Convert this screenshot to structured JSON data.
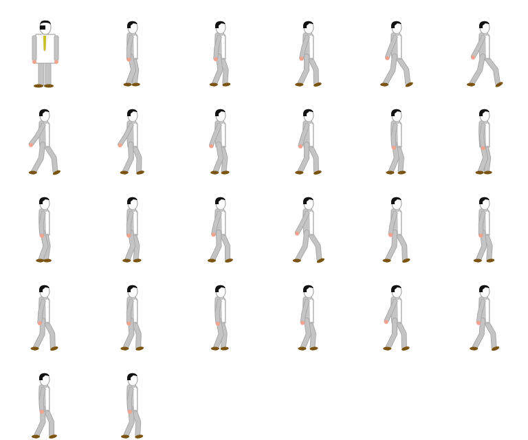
{
  "sprite_sheet": {
    "columns": 6,
    "frame_count": 26,
    "colors": {
      "background": "#ffffff",
      "suit": "#c4c4c4",
      "suit_light": "#ffffff",
      "outline": "#a8a8a8",
      "hair": "#111111",
      "skin": "#f2a38e",
      "shoe": "#7a5410",
      "tie": "#c8c020"
    },
    "frames": [
      {
        "view": "front"
      },
      {
        "view": "side",
        "stride": 0.1,
        "arm": 0.1
      },
      {
        "view": "side",
        "stride": 0.3,
        "arm": 0.2
      },
      {
        "view": "side",
        "stride": 0.55,
        "arm": 0.4
      },
      {
        "view": "side",
        "stride": 0.85,
        "arm": 0.6
      },
      {
        "view": "side",
        "stride": 1.0,
        "arm": 0.8
      },
      {
        "view": "side",
        "stride": 0.8,
        "arm": 1.0
      },
      {
        "view": "side",
        "stride": 0.45,
        "arm": 0.9
      },
      {
        "view": "side",
        "stride": 0.2,
        "arm": 0.6
      },
      {
        "view": "side",
        "stride": 0.55,
        "arm": 0.5
      },
      {
        "view": "side",
        "stride": 0.25,
        "arm": 0.0
      },
      {
        "view": "side",
        "stride": 0.1,
        "arm": -0.1
      },
      {
        "view": "side",
        "stride": 0.05,
        "arm": 0.0
      },
      {
        "view": "side",
        "stride": 0.2,
        "arm": 0.1
      },
      {
        "view": "side",
        "stride": 0.5,
        "arm": 0.4
      },
      {
        "view": "side",
        "stride": 0.8,
        "arm": 0.8
      },
      {
        "view": "side",
        "stride": 0.6,
        "arm": 0.3
      },
      {
        "view": "side",
        "stride": 0.3,
        "arm": 0.1
      },
      {
        "view": "side",
        "stride": 0.6,
        "arm": 0.2
      },
      {
        "view": "side",
        "stride": 0.4,
        "arm": 0.1
      },
      {
        "view": "side",
        "stride": 0.15,
        "arm": 0.0
      },
      {
        "view": "side",
        "stride": 0.25,
        "arm": 0.3
      },
      {
        "view": "side",
        "stride": 0.55,
        "arm": 0.7
      },
      {
        "view": "side",
        "stride": 0.7,
        "arm": 0.3
      },
      {
        "view": "side",
        "stride": 0.5,
        "arm": 0.0
      },
      {
        "view": "side",
        "stride": 0.35,
        "arm": 0.0
      }
    ]
  }
}
